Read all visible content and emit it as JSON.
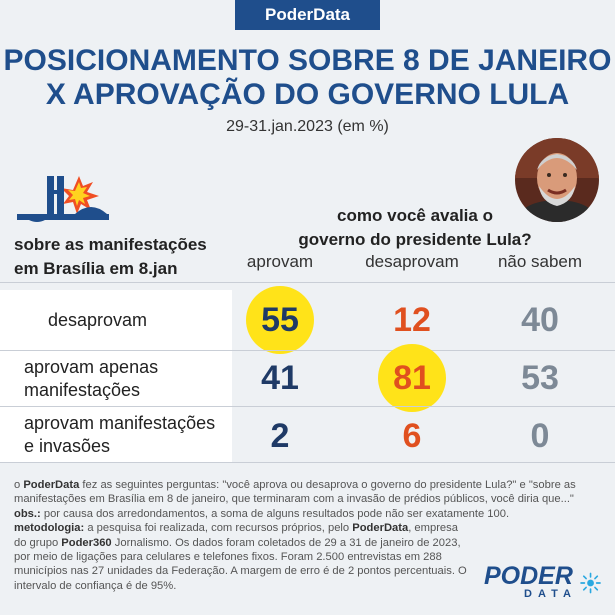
{
  "brand": "PoderData",
  "title_line1": "POSICIONAMENTO SOBRE 8 DE JANEIRO",
  "title_line2": "X APROVAÇÃO DO GOVERNO LULA",
  "subtitle": "29-31.jan.2023 (em %)",
  "question_line1": "como você avalia o",
  "question_line2": "governo do presidente Lula?",
  "row_header_line1": "sobre as manifestações",
  "row_header_line2": "em Brasília em 8.jan",
  "colors": {
    "accent": "#1f4e8c",
    "highlight": "#ffe319",
    "approve": "#1f3a66",
    "disapprove": "#e0501f",
    "unsure": "#7d8996"
  },
  "chart_data": {
    "type": "table",
    "columns": [
      "aprovam",
      "desaprovam",
      "não sabem"
    ],
    "rows": [
      {
        "label_line1": "desaprovam",
        "label_line2": "",
        "values": [
          "55",
          "12",
          "40"
        ],
        "highlight": 0
      },
      {
        "label_line1": "aprovam apenas",
        "label_line2": "manifestações",
        "values": [
          "41",
          "81",
          "53"
        ],
        "highlight": 1
      },
      {
        "label_line1": "aprovam manifestações",
        "label_line2": "e invasões",
        "values": [
          "2",
          "6",
          "0"
        ],
        "highlight": -1
      }
    ]
  },
  "notes": {
    "intro_prefix": "o ",
    "intro_brand": "PoderData",
    "intro_text": " fez as seguintes perguntas: \"você aprova ou desaprova o governo do presidente Lula?\" e \"sobre as manifestações em Brasília em 8 de janeiro, que terminaram com a invasão de prédios públicos, você diria que...\"",
    "obs_label": "obs.:",
    "obs_text": " por causa dos arredondamentos, a soma de alguns resultados pode não ser exatamente 100.",
    "method_label": "metodologia:",
    "method_text1": " a pesquisa foi realizada, com recursos próprios, pelo ",
    "method_brand": "PoderData",
    "method_text2": ", empresa do grupo ",
    "method_group": "Poder360",
    "method_text3": " Jornalismo. Os dados foram coletados de 29 a 31 de janeiro de 2023, por meio de ligações para celulares e telefones fixos. Foram 2.500 entrevistas em 288 municípios nas 27 unidades da Federação. A margem de erro é de 2 pontos percentuais. O intervalo de confiança é de 95%."
  },
  "logo": {
    "word1": "PODER",
    "word2": "DATA"
  }
}
